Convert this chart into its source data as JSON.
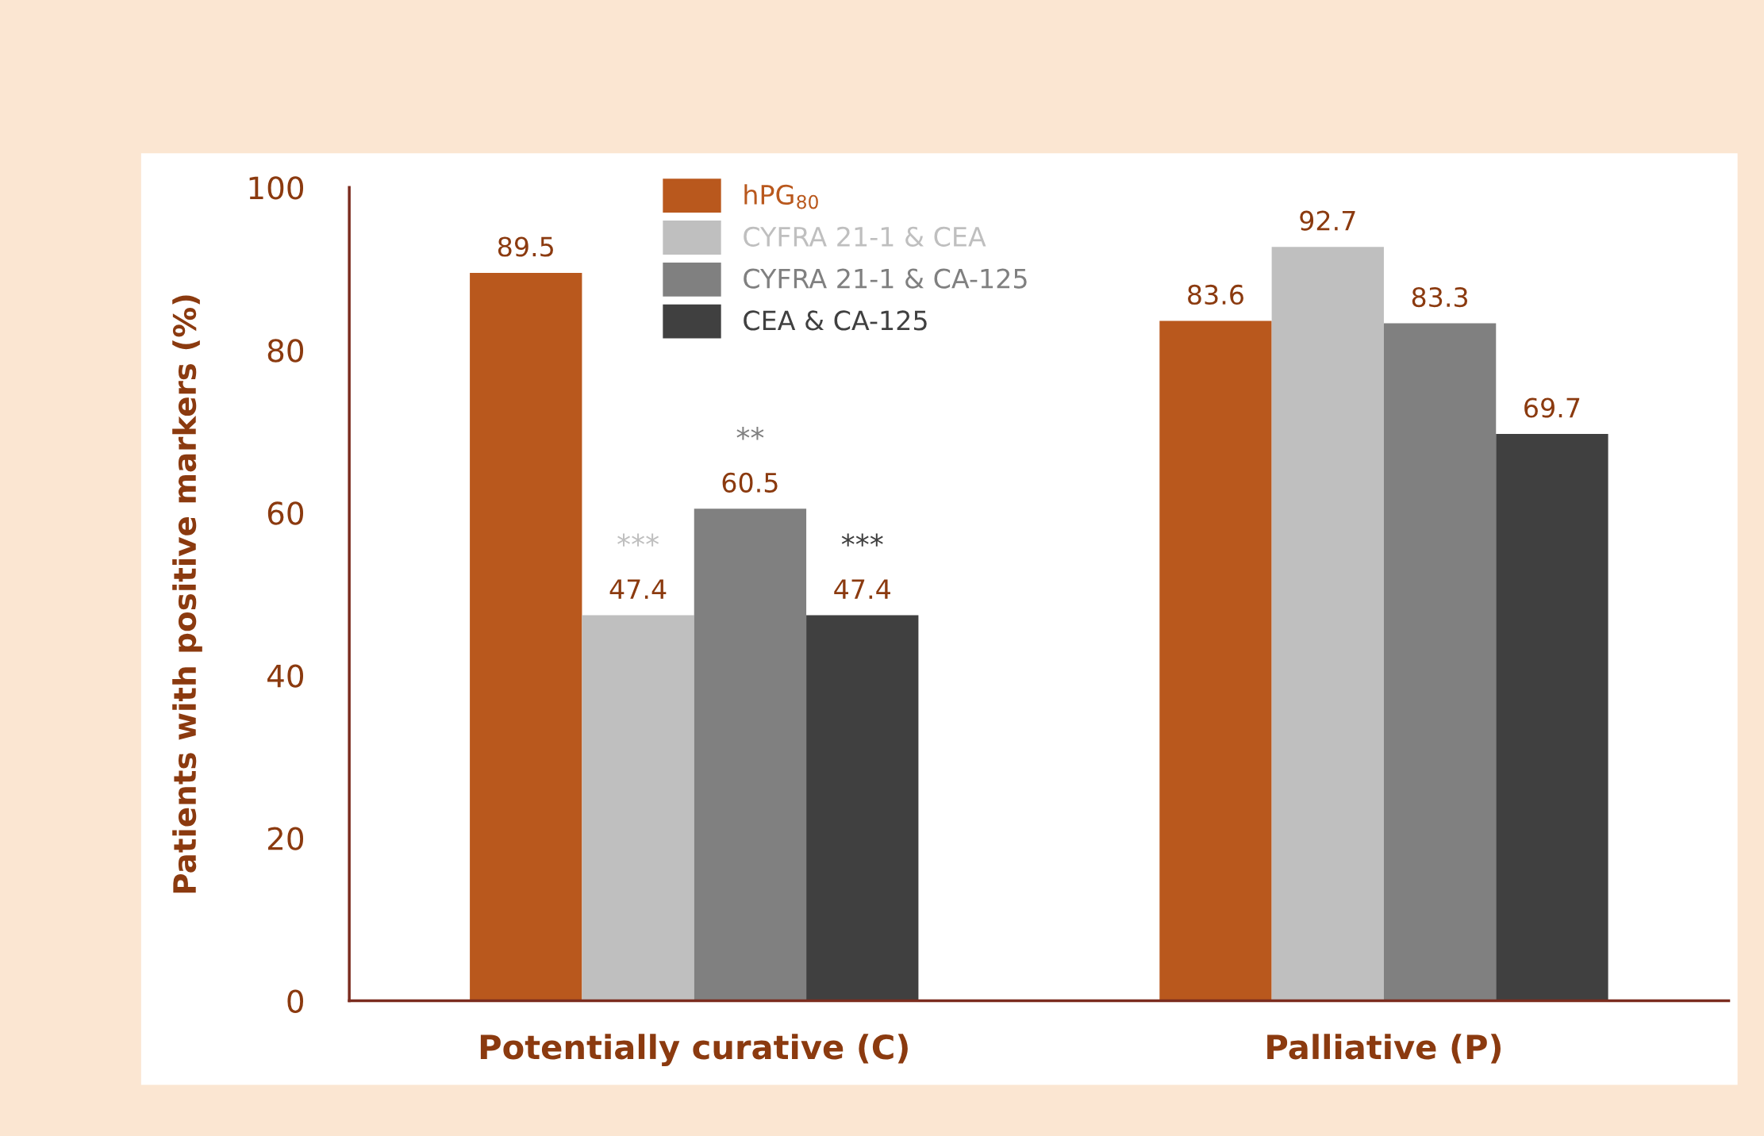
{
  "chart_data": {
    "type": "bar",
    "ylabel": "Patients with positive markers (%)",
    "categories": [
      "Potentially curative (C)",
      "Palliative (P)"
    ],
    "series": [
      {
        "name": "hPG$_{80}$",
        "color": "#b9581d",
        "values": [
          89.5,
          83.6
        ]
      },
      {
        "name": "CYFRA 21-1 & CEA",
        "color": "#bfbfbf",
        "values": [
          47.4,
          92.7
        ]
      },
      {
        "name": "CYFRA 21-1 & CA-125",
        "color": "#808080",
        "values": [
          60.5,
          83.3
        ]
      },
      {
        "name": "CEA & CA-125",
        "color": "#404040",
        "values": [
          47.4,
          69.7
        ]
      }
    ],
    "ylim": [
      0,
      100
    ],
    "yticks": [
      0,
      20,
      40,
      60,
      80,
      100
    ],
    "data_labels": true,
    "legend": "top",
    "grid": false,
    "annotations": [
      "***",
      "**",
      "***"
    ]
  }
}
